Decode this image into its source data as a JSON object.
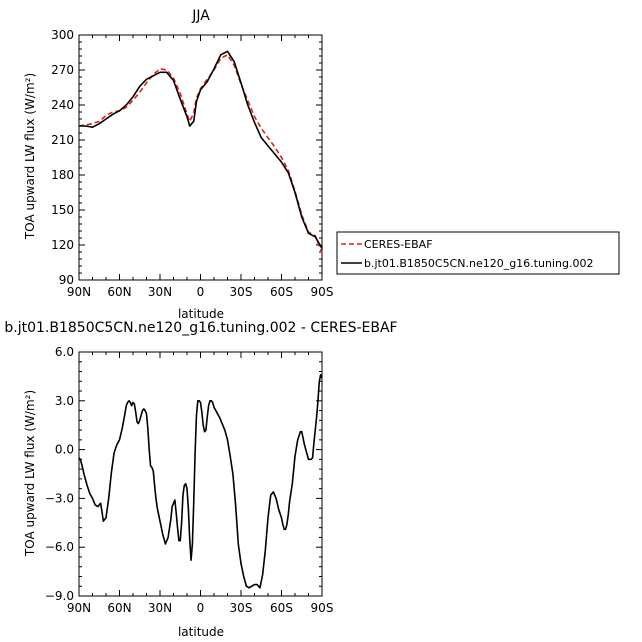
{
  "chart_data": [
    {
      "type": "line",
      "title": "JJA",
      "xlabel": "latitude",
      "ylabel": "TOA upward LW flux (W/m²)",
      "xlim": [
        90,
        -90
      ],
      "ylim": [
        90,
        300
      ],
      "x_ticks": [
        90,
        60,
        30,
        0,
        -30,
        -60,
        -90
      ],
      "x_tick_labels": [
        "90N",
        "60N",
        "30N",
        "0",
        "30S",
        "60S",
        "90S"
      ],
      "y_ticks": [
        90,
        120,
        150,
        180,
        210,
        240,
        270,
        300
      ],
      "y_tick_labels": [
        "90",
        "120",
        "150",
        "180",
        "210",
        "240",
        "270",
        "300"
      ],
      "legend_position": "right",
      "series": [
        {
          "name": "CERES-EBAF",
          "color": "#e0201b",
          "dash": "dashed",
          "x": [
            90,
            85,
            80,
            75,
            70,
            65,
            60,
            55,
            50,
            45,
            40,
            35,
            30,
            25,
            20,
            15,
            10,
            8,
            5,
            3,
            0,
            -5,
            -10,
            -15,
            -20,
            -25,
            -30,
            -35,
            -40,
            -45,
            -50,
            -55,
            -60,
            -65,
            -70,
            -75,
            -80,
            -85,
            -90
          ],
          "y": [
            222,
            223,
            224,
            226,
            231,
            234,
            235,
            238,
            244,
            251,
            259,
            266,
            271,
            270,
            263,
            250,
            232,
            226,
            233,
            246,
            254,
            262,
            270,
            280,
            283,
            274,
            258,
            244,
            230,
            220,
            212,
            204,
            195,
            184,
            166,
            146,
            131,
            128,
            113
          ]
        },
        {
          "name": "b.jt01.B1850C5CN.ne120_g16.tuning.002",
          "color": "#000000",
          "dash": "solid",
          "x": [
            90,
            85,
            80,
            75,
            70,
            65,
            60,
            55,
            50,
            45,
            40,
            35,
            30,
            25,
            20,
            15,
            10,
            8,
            5,
            3,
            0,
            -5,
            -10,
            -15,
            -20,
            -25,
            -30,
            -35,
            -40,
            -45,
            -50,
            -55,
            -60,
            -65,
            -70,
            -75,
            -80,
            -85,
            -90
          ],
          "y": [
            222,
            222,
            221,
            224,
            228,
            232,
            235,
            240,
            247,
            256,
            262,
            265,
            268,
            268,
            261,
            245,
            230,
            222,
            226,
            243,
            253,
            260,
            271,
            283,
            286,
            277,
            259,
            240,
            225,
            212,
            205,
            198,
            191,
            182,
            165,
            144,
            130,
            127,
            117
          ]
        }
      ]
    },
    {
      "type": "line",
      "title": "b.jt01.B1850C5CN.ne120_g16.tuning.002 - CERES-EBAF",
      "xlabel": "latitude",
      "ylabel": "TOA upward LW flux (W/m²)",
      "xlim": [
        90,
        -90
      ],
      "ylim": [
        -9.0,
        6.0
      ],
      "x_ticks": [
        90,
        60,
        30,
        0,
        -30,
        -60,
        -90
      ],
      "x_tick_labels": [
        "90N",
        "60N",
        "30N",
        "0",
        "30S",
        "60S",
        "90S"
      ],
      "y_ticks": [
        -9.0,
        -6.0,
        -3.0,
        0.0,
        3.0,
        6.0
      ],
      "y_tick_labels": [
        "−9.0",
        "−6.0",
        "−3.0",
        "0.0",
        "3.0",
        "6.0"
      ],
      "series": [
        {
          "color": "#000000",
          "dash": "solid",
          "x": [
            90,
            89,
            88,
            86,
            84,
            82,
            80,
            78,
            76,
            74,
            73,
            72,
            70,
            68,
            66,
            64,
            62,
            60,
            58,
            56,
            55,
            54,
            53,
            52,
            51,
            50,
            49,
            48,
            47,
            46,
            45,
            44,
            43,
            42,
            41,
            40,
            39,
            38,
            37,
            36,
            35,
            34,
            33,
            32,
            30,
            28,
            26,
            24,
            22,
            21,
            20,
            19,
            18,
            17,
            16,
            15,
            14,
            13,
            12,
            11,
            10,
            9,
            8,
            7,
            6,
            5,
            4,
            3,
            2,
            1,
            0,
            -1,
            -2,
            -3,
            -4,
            -5,
            -6,
            -7,
            -8,
            -9,
            -10,
            -12,
            -14,
            -16,
            -18,
            -20,
            -22,
            -24,
            -26,
            -28,
            -30,
            -32,
            -34,
            -36,
            -38,
            -40,
            -42,
            -44,
            -46,
            -48,
            -50,
            -52,
            -54,
            -56,
            -58,
            -60,
            -61,
            -62,
            -63,
            -64,
            -65,
            -66,
            -68,
            -70,
            -72,
            -74,
            -75,
            -76,
            -77,
            -78,
            -79,
            -80,
            -81,
            -82,
            -83,
            -84,
            -85,
            -86,
            -87,
            -88,
            -89,
            -90
          ],
          "y": [
            -0.5,
            -0.6,
            -0.9,
            -1.6,
            -2.2,
            -2.7,
            -3.0,
            -3.4,
            -3.5,
            -3.3,
            -3.8,
            -4.4,
            -4.2,
            -3.0,
            -1.4,
            -0.2,
            0.3,
            0.6,
            1.3,
            2.2,
            2.7,
            2.9,
            3.0,
            2.9,
            2.7,
            2.9,
            2.8,
            2.3,
            1.7,
            1.6,
            1.8,
            2.1,
            2.4,
            2.5,
            2.4,
            2.2,
            1.3,
            0.0,
            -1.0,
            -1.1,
            -1.3,
            -2.2,
            -3.0,
            -3.6,
            -4.4,
            -5.2,
            -5.8,
            -5.4,
            -4.3,
            -3.5,
            -3.3,
            -3.1,
            -3.9,
            -4.8,
            -5.6,
            -5.6,
            -4.5,
            -2.8,
            -2.2,
            -2.1,
            -2.4,
            -3.6,
            -5.5,
            -6.8,
            -5.8,
            -3.2,
            -0.2,
            2.1,
            3.0,
            3.0,
            2.9,
            2.3,
            1.5,
            1.1,
            1.2,
            2.0,
            2.7,
            3.0,
            3.0,
            2.9,
            2.6,
            2.3,
            2.0,
            1.6,
            1.2,
            0.6,
            -0.4,
            -1.5,
            -3.4,
            -5.8,
            -7.0,
            -7.8,
            -8.4,
            -8.5,
            -8.4,
            -8.3,
            -8.3,
            -8.5,
            -7.7,
            -6.2,
            -4.2,
            -2.8,
            -2.6,
            -3.0,
            -3.7,
            -4.2,
            -4.6,
            -4.9,
            -4.9,
            -4.6,
            -4.0,
            -3.2,
            -2.1,
            -0.4,
            0.6,
            1.1,
            1.1,
            0.7,
            0.3,
            0.0,
            -0.3,
            -0.6,
            -0.6,
            -0.6,
            -0.5,
            0.4,
            1.2,
            2.0,
            3.0,
            4.2,
            4.6,
            4.4
          ]
        }
      ]
    }
  ]
}
